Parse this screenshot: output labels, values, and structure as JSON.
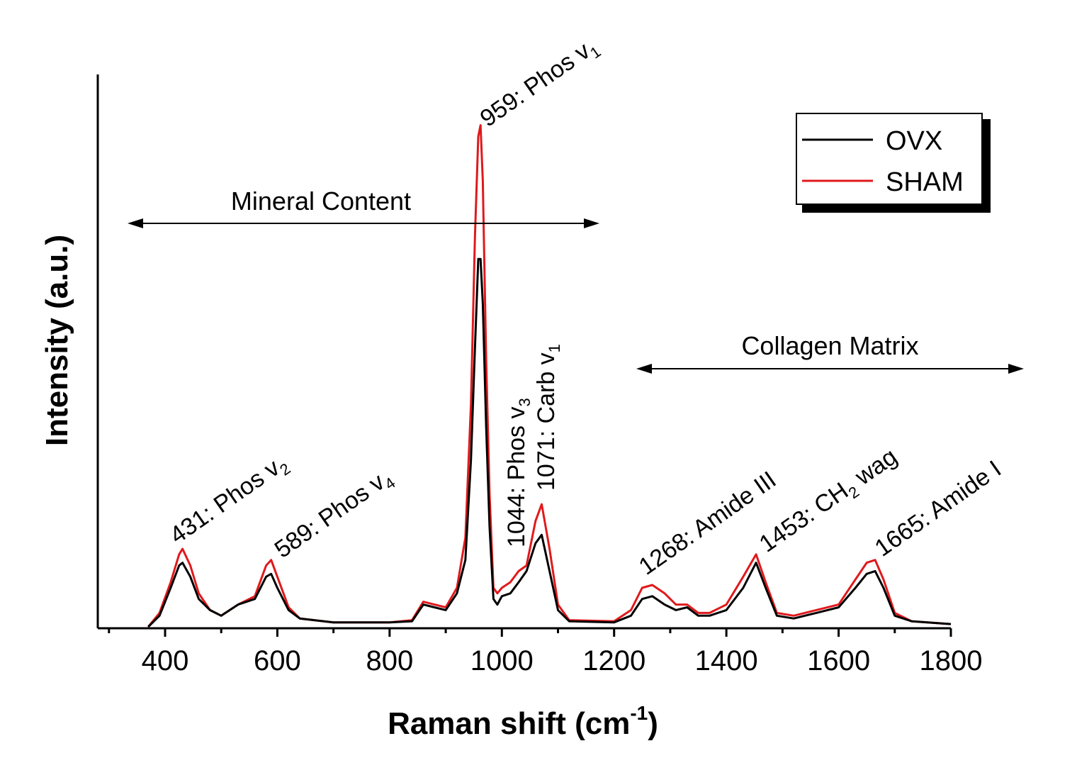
{
  "chart_data": {
    "type": "line",
    "xlabel": "Raman shift (cm",
    "xlabel_sup": "-1",
    "xlabel_close": ")",
    "ylabel": "Intensity (a.u.)",
    "xlim": [
      300,
      1800
    ],
    "ylim": [
      0,
      100
    ],
    "x_ticks": [
      "400",
      "600",
      "800",
      "1000",
      "1200",
      "1400",
      "1600",
      "1800"
    ],
    "y_tick_labels_shown": false,
    "grid": false,
    "legend_position": "top-right",
    "series": [
      {
        "name": "OVX",
        "color": "#000000",
        "points": [
          [
            370,
            0
          ],
          [
            390,
            2
          ],
          [
            410,
            7
          ],
          [
            425,
            11
          ],
          [
            431,
            11.5
          ],
          [
            445,
            9
          ],
          [
            460,
            5
          ],
          [
            480,
            3
          ],
          [
            500,
            2
          ],
          [
            530,
            4
          ],
          [
            560,
            5
          ],
          [
            580,
            9
          ],
          [
            589,
            9.5
          ],
          [
            600,
            7
          ],
          [
            620,
            3
          ],
          [
            640,
            1.5
          ],
          [
            700,
            0.8
          ],
          [
            800,
            0.8
          ],
          [
            840,
            1
          ],
          [
            860,
            4
          ],
          [
            880,
            3.5
          ],
          [
            900,
            3
          ],
          [
            920,
            6
          ],
          [
            935,
            12
          ],
          [
            945,
            30
          ],
          [
            952,
            50
          ],
          [
            958,
            66
          ],
          [
            962,
            66
          ],
          [
            966,
            58
          ],
          [
            972,
            36
          ],
          [
            978,
            18
          ],
          [
            985,
            5
          ],
          [
            992,
            4
          ],
          [
            1000,
            5.5
          ],
          [
            1015,
            6
          ],
          [
            1030,
            8
          ],
          [
            1044,
            10
          ],
          [
            1060,
            15
          ],
          [
            1071,
            16.5
          ],
          [
            1085,
            10
          ],
          [
            1100,
            3
          ],
          [
            1120,
            1
          ],
          [
            1200,
            0.8
          ],
          [
            1230,
            2
          ],
          [
            1250,
            5
          ],
          [
            1268,
            5.5
          ],
          [
            1290,
            4
          ],
          [
            1310,
            3
          ],
          [
            1330,
            3.5
          ],
          [
            1350,
            2
          ],
          [
            1370,
            2
          ],
          [
            1400,
            3
          ],
          [
            1430,
            7
          ],
          [
            1453,
            11.5
          ],
          [
            1470,
            7
          ],
          [
            1490,
            2
          ],
          [
            1520,
            1.5
          ],
          [
            1560,
            2.5
          ],
          [
            1600,
            3.5
          ],
          [
            1630,
            7
          ],
          [
            1650,
            9.5
          ],
          [
            1665,
            10
          ],
          [
            1680,
            7
          ],
          [
            1700,
            2
          ],
          [
            1730,
            1
          ],
          [
            1800,
            0.5
          ]
        ]
      },
      {
        "name": "SHAM",
        "color": "#e0191c",
        "points": [
          [
            370,
            0
          ],
          [
            390,
            2.5
          ],
          [
            410,
            8
          ],
          [
            425,
            13
          ],
          [
            431,
            14
          ],
          [
            445,
            11
          ],
          [
            460,
            6
          ],
          [
            480,
            3
          ],
          [
            500,
            2
          ],
          [
            530,
            4
          ],
          [
            560,
            5.5
          ],
          [
            580,
            11
          ],
          [
            589,
            12
          ],
          [
            600,
            9
          ],
          [
            620,
            3.5
          ],
          [
            640,
            1.5
          ],
          [
            700,
            0.8
          ],
          [
            800,
            0.8
          ],
          [
            840,
            1.2
          ],
          [
            860,
            4.5
          ],
          [
            880,
            4
          ],
          [
            900,
            3.5
          ],
          [
            920,
            7
          ],
          [
            935,
            16
          ],
          [
            945,
            40
          ],
          [
            952,
            70
          ],
          [
            958,
            88
          ],
          [
            962,
            90
          ],
          [
            966,
            80
          ],
          [
            972,
            48
          ],
          [
            978,
            24
          ],
          [
            985,
            7
          ],
          [
            992,
            6
          ],
          [
            1000,
            7
          ],
          [
            1015,
            8
          ],
          [
            1030,
            10
          ],
          [
            1044,
            11
          ],
          [
            1060,
            19
          ],
          [
            1071,
            22
          ],
          [
            1085,
            14
          ],
          [
            1100,
            4
          ],
          [
            1120,
            1.2
          ],
          [
            1200,
            1
          ],
          [
            1230,
            3
          ],
          [
            1250,
            7
          ],
          [
            1268,
            7.5
          ],
          [
            1290,
            6
          ],
          [
            1310,
            4
          ],
          [
            1330,
            4
          ],
          [
            1350,
            2.5
          ],
          [
            1370,
            2.5
          ],
          [
            1400,
            4
          ],
          [
            1430,
            9
          ],
          [
            1453,
            13
          ],
          [
            1470,
            8
          ],
          [
            1490,
            2.5
          ],
          [
            1520,
            2
          ],
          [
            1560,
            3
          ],
          [
            1600,
            4
          ],
          [
            1630,
            8.5
          ],
          [
            1650,
            11.5
          ],
          [
            1665,
            12
          ],
          [
            1680,
            8.5
          ],
          [
            1700,
            2.5
          ],
          [
            1730,
            1
          ],
          [
            1800,
            0.5
          ]
        ]
      }
    ],
    "annotations": [
      {
        "x": 431,
        "base": "431: Phos v",
        "sub": "2",
        "rest": ""
      },
      {
        "x": 589,
        "base": "589: Phos v",
        "sub": "4",
        "rest": ""
      },
      {
        "x": 959,
        "base": "959: Phos v",
        "sub": "1",
        "rest": ""
      },
      {
        "x": 1044,
        "base": "1044: Phos v",
        "sub": "3",
        "rest": ""
      },
      {
        "x": 1071,
        "base": "1071: Carb v",
        "sub": "1",
        "rest": ""
      },
      {
        "x": 1268,
        "base": "1268: Amide III",
        "sub": "",
        "rest": ""
      },
      {
        "x": 1453,
        "base": "1453: CH",
        "sub": "2",
        "rest": " wag"
      },
      {
        "x": 1665,
        "base": "1665: Amide I",
        "sub": "",
        "rest": ""
      }
    ],
    "regions": [
      {
        "label": "Mineral Content",
        "x_from": 350,
        "x_to": 1180
      },
      {
        "label": "Collagen Matrix",
        "x_from": 1240,
        "x_to": 1930
      }
    ]
  }
}
